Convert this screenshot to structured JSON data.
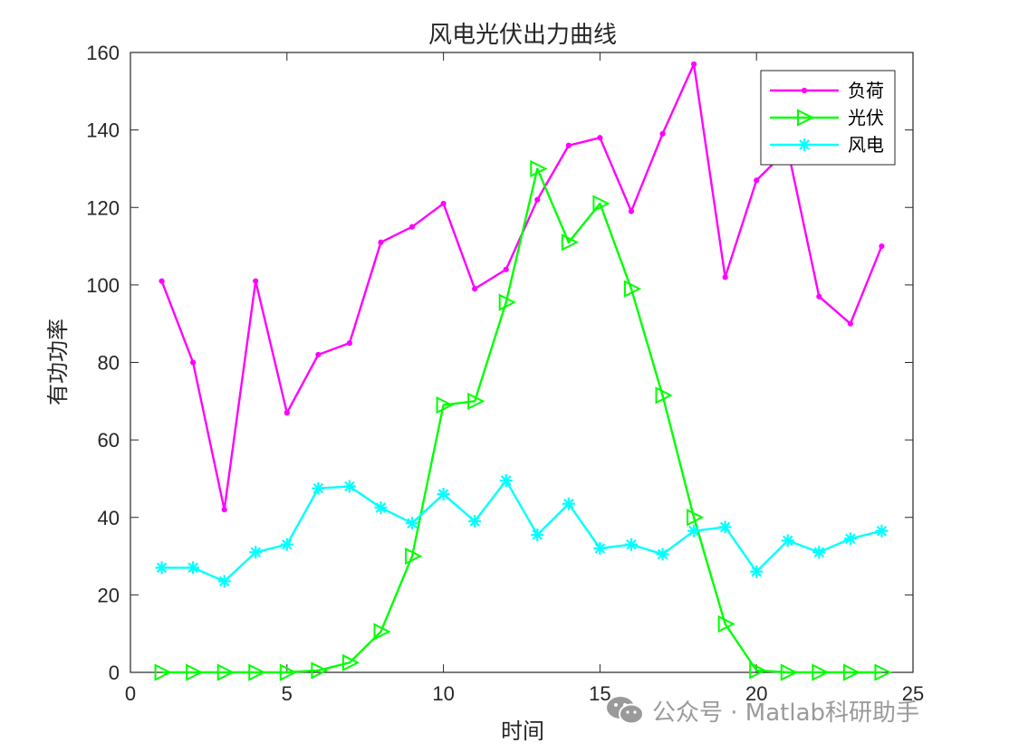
{
  "colors": {
    "load": "#ff00ff",
    "pv": "#00ff00",
    "wind": "#00ffff",
    "axis": "#262626",
    "watermark": "#9a9a9a"
  },
  "watermark": {
    "text": "公众号 · Matlab科研助手",
    "icon": "wechat-icon"
  },
  "chart_data": {
    "type": "line",
    "title": "风电光伏出力曲线",
    "xlabel": "时间",
    "ylabel": "有功功率",
    "xlim": [
      0,
      25
    ],
    "ylim": [
      0,
      160
    ],
    "xticks": [
      0,
      5,
      10,
      15,
      20,
      25
    ],
    "yticks": [
      0,
      20,
      40,
      60,
      80,
      100,
      120,
      140,
      160
    ],
    "grid": false,
    "legend_position": "top-right",
    "x": [
      1,
      2,
      3,
      4,
      5,
      6,
      7,
      8,
      9,
      10,
      11,
      12,
      13,
      14,
      15,
      16,
      17,
      18,
      19,
      20,
      21,
      22,
      23,
      24
    ],
    "series": [
      {
        "name": "负荷",
        "marker": "dot",
        "values": [
          101,
          80,
          42,
          101,
          67,
          82,
          85,
          111,
          115,
          121,
          99,
          104,
          122,
          136,
          138,
          119,
          139,
          157,
          102,
          127,
          135,
          97,
          90,
          110
        ]
      },
      {
        "name": "光伏",
        "marker": "triangle-right",
        "values": [
          0,
          0,
          0,
          0,
          0,
          0.5,
          2.5,
          10.5,
          30,
          69,
          70,
          95.5,
          130,
          111,
          121,
          99,
          71.5,
          40,
          12.5,
          0.5,
          0,
          0,
          0,
          0
        ]
      },
      {
        "name": "风电",
        "marker": "asterisk",
        "values": [
          27,
          27,
          23.5,
          31,
          33,
          47.5,
          48,
          42.5,
          38.5,
          46,
          39,
          49.5,
          35.5,
          43.5,
          32,
          33,
          30.5,
          36.5,
          37.5,
          26,
          34,
          31,
          34.5,
          36.5
        ]
      }
    ]
  }
}
